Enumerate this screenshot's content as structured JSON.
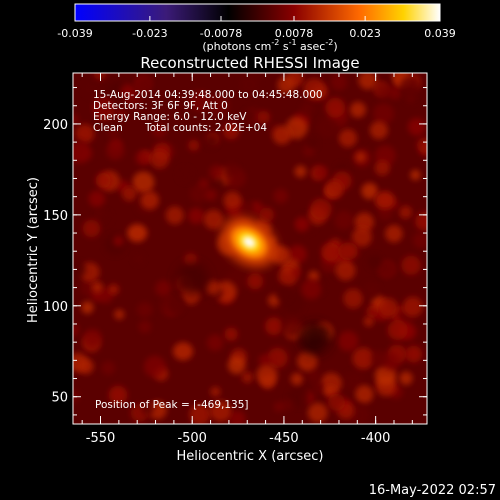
{
  "chart_data": {
    "type": "heatmap",
    "title": "Reconstructed RHESSI Image",
    "xlabel": "Heliocentric X (arcsec)",
    "ylabel": "Heliocentric Y (arcsec)",
    "xlim": [
      -565,
      -372
    ],
    "ylim": [
      35,
      228
    ],
    "x_ticks": [
      -550,
      -500,
      -450,
      -400
    ],
    "y_ticks": [
      50,
      100,
      150,
      200
    ],
    "x_tick_labels": [
      "-550",
      "-500",
      "-450",
      "-400"
    ],
    "y_tick_labels": [
      "50",
      "100",
      "150",
      "200"
    ],
    "colorbar": {
      "range": [
        -0.039,
        0.039
      ],
      "tick_labels": [
        "-0.039",
        "-0.023",
        "-0.0078",
        "0.0078",
        "0.023",
        "0.039"
      ],
      "tick_values": [
        -0.039,
        -0.023,
        -0.0078,
        0.0078,
        0.023,
        0.039
      ],
      "unit_main": "(photons cm",
      "unit_sup1": "-2",
      "unit_mid1": " s",
      "unit_sup2": "-1",
      "unit_mid2": " asec",
      "unit_sup3": "-2",
      "unit_end": ")",
      "colors": [
        "#0000ff",
        "#3b1b78",
        "#000000",
        "#8a0000",
        "#ff6a00",
        "#ffd200",
        "#ffffff"
      ]
    },
    "annotations": [
      "15-Aug-2014 04:39:48.000 to 04:45:48.000",
      "Detectors: 3F 6F 9F, Att 0",
      "Energy Range: 6.0 - 12.0 keV",
      "Clean",
      "Total counts: 2.02E+04"
    ],
    "peak": {
      "label": "Position of Peak = [-469,135]",
      "x": -469,
      "y": 135,
      "value": 0.039
    },
    "background_level": 0.008,
    "secondary_sources": [
      {
        "x": -530,
        "y": 140,
        "value": 0.013
      },
      {
        "x": -505,
        "y": 75,
        "value": 0.012
      },
      {
        "x": -395,
        "y": 158,
        "value": 0.011
      },
      {
        "x": -415,
        "y": 130,
        "value": 0.009
      },
      {
        "x": -452,
        "y": 128,
        "value": 0.012
      }
    ],
    "dark_sources": [
      {
        "x": -433,
        "y": 82,
        "value": -0.002
      },
      {
        "x": -500,
        "y": 115,
        "value": 0.001
      }
    ]
  },
  "footer": {
    "timestamp": "16-May-2022 02:57"
  }
}
